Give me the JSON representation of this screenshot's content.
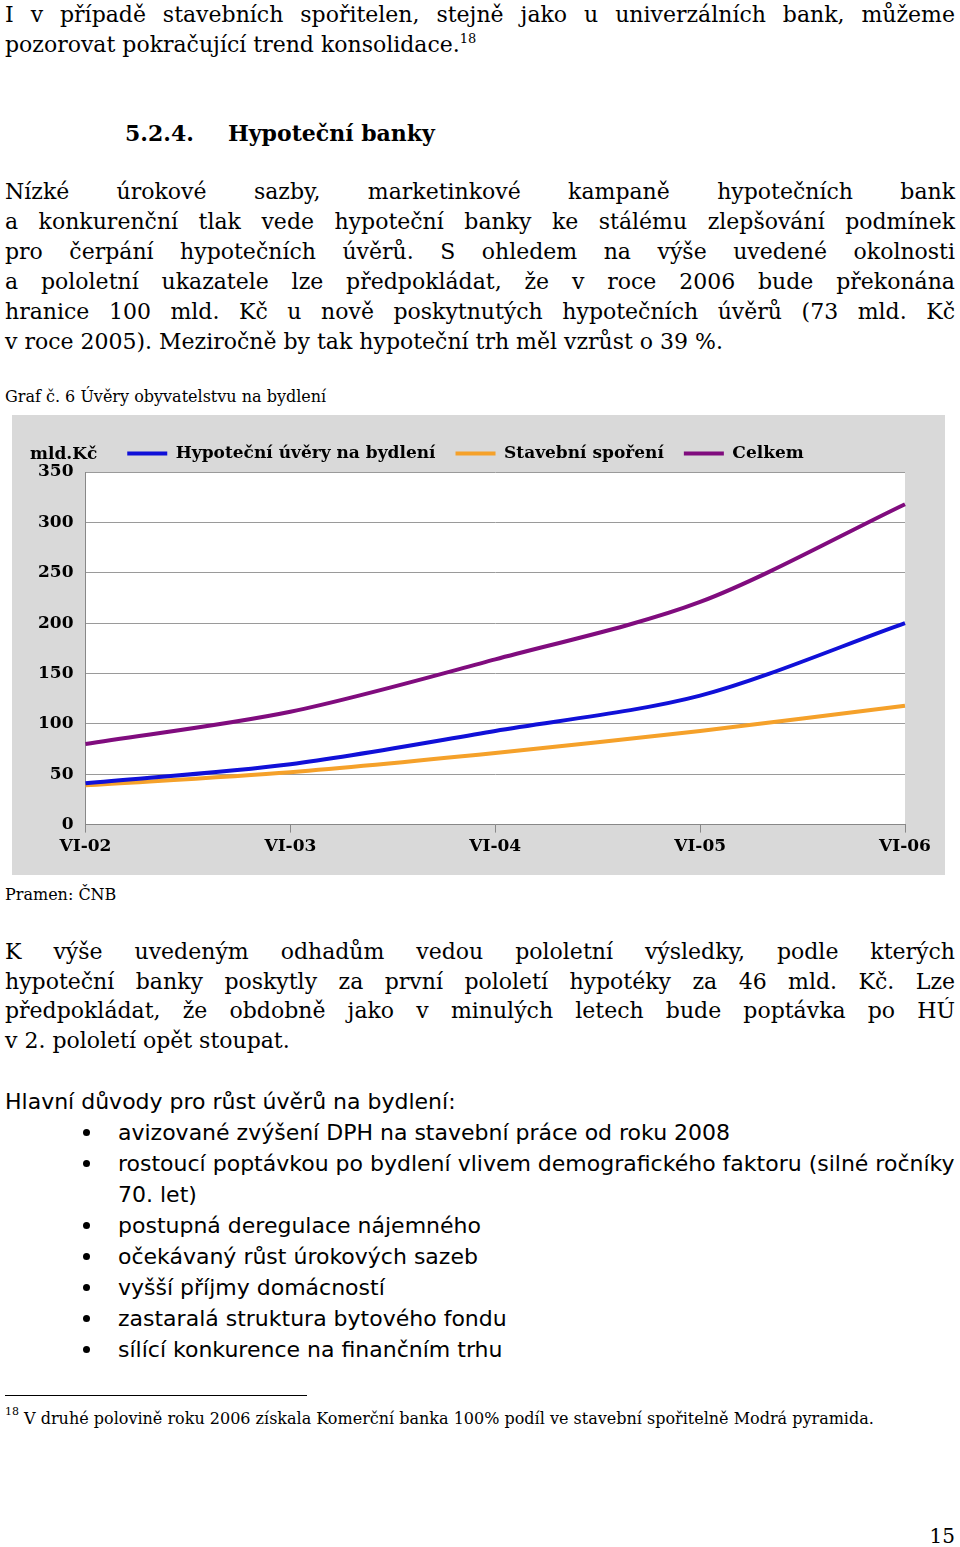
{
  "intro": {
    "lines": [
      "I v případě stavebních spořitelen, stejně jako u univerzálních bank, můžeme",
      "pozorovat pokračující trend konsolidace."
    ],
    "footnote_ref": "18"
  },
  "heading": {
    "number": "5.2.4.",
    "title": "Hypoteční banky"
  },
  "paragraph1": [
    "Nízké úrokové sazby, marketinkové kampaně hypotečních bank",
    "a konkurenční tlak vede hypoteční banky ke stálému zlepšování podmínek",
    "pro čerpání hypotečních úvěrů. S ohledem na výše uvedené okolnosti",
    "a pololetní ukazatele lze předpokládat, že v roce 2006 bude překonána",
    "hranice 100 mld. Kč u nově poskytnutých hypotečních úvěrů (73 mld. Kč",
    "v roce 2005). Meziročně by tak hypoteční trh měl vzrůst o 39 %."
  ],
  "figure_caption": "Graf č. 6 Úvěry obyvatelstvu na bydlení",
  "chart_data": {
    "type": "line",
    "y_label": "mld.Kč",
    "categories": [
      "VI-02",
      "VI-03",
      "VI-04",
      "VI-05",
      "VI-06"
    ],
    "series": [
      {
        "name": "Hypoteční úvěry na bydlení",
        "color": "#1010d8",
        "values": [
          41,
          60,
          93,
          128,
          200
        ]
      },
      {
        "name": "Stavební spoření",
        "color": "#f5a12a",
        "values": [
          39,
          52,
          71,
          93,
          118
        ]
      },
      {
        "name": "Celkem",
        "color": "#800c7e",
        "values": [
          80,
          112,
          164,
          221,
          318
        ]
      }
    ],
    "ylim": [
      0,
      350
    ],
    "yticks": [
      0,
      50,
      100,
      150,
      200,
      250,
      300,
      350
    ],
    "grid": true,
    "legend": "top"
  },
  "source": "Pramen: ČNB",
  "paragraph2": [
    "K výše uvedeným odhadům vedou pololetní výsledky, podle kterých",
    "hypoteční banky poskytly za první pololetí hypotéky za 46 mld. Kč. Lze",
    "předpokládat, že obdobně jako v minulých letech bude poptávka po HÚ",
    "v 2. pololetí opět stoupat."
  ],
  "reasons": {
    "title": "Hlavní důvody pro růst úvěrů na bydlení:",
    "items": [
      "avizované zvýšení DPH na stavební práce od roku 2008",
      "rostoucí poptávkou po bydlení vlivem demografického faktoru (silné ročníky 70. let)",
      "postupná deregulace nájemného",
      "očekávaný růst úrokových sazeb",
      "vyšší příjmy domácností",
      "zastaralá struktura bytového fondu",
      "sílící konkurence na finančním trhu"
    ]
  },
  "footnote": {
    "number": "18",
    "text": "V druhé polovině roku 2006 získala Komerční banka 100% podíl ve stavební spořitelně Modrá pyramida."
  },
  "page_number": "15"
}
